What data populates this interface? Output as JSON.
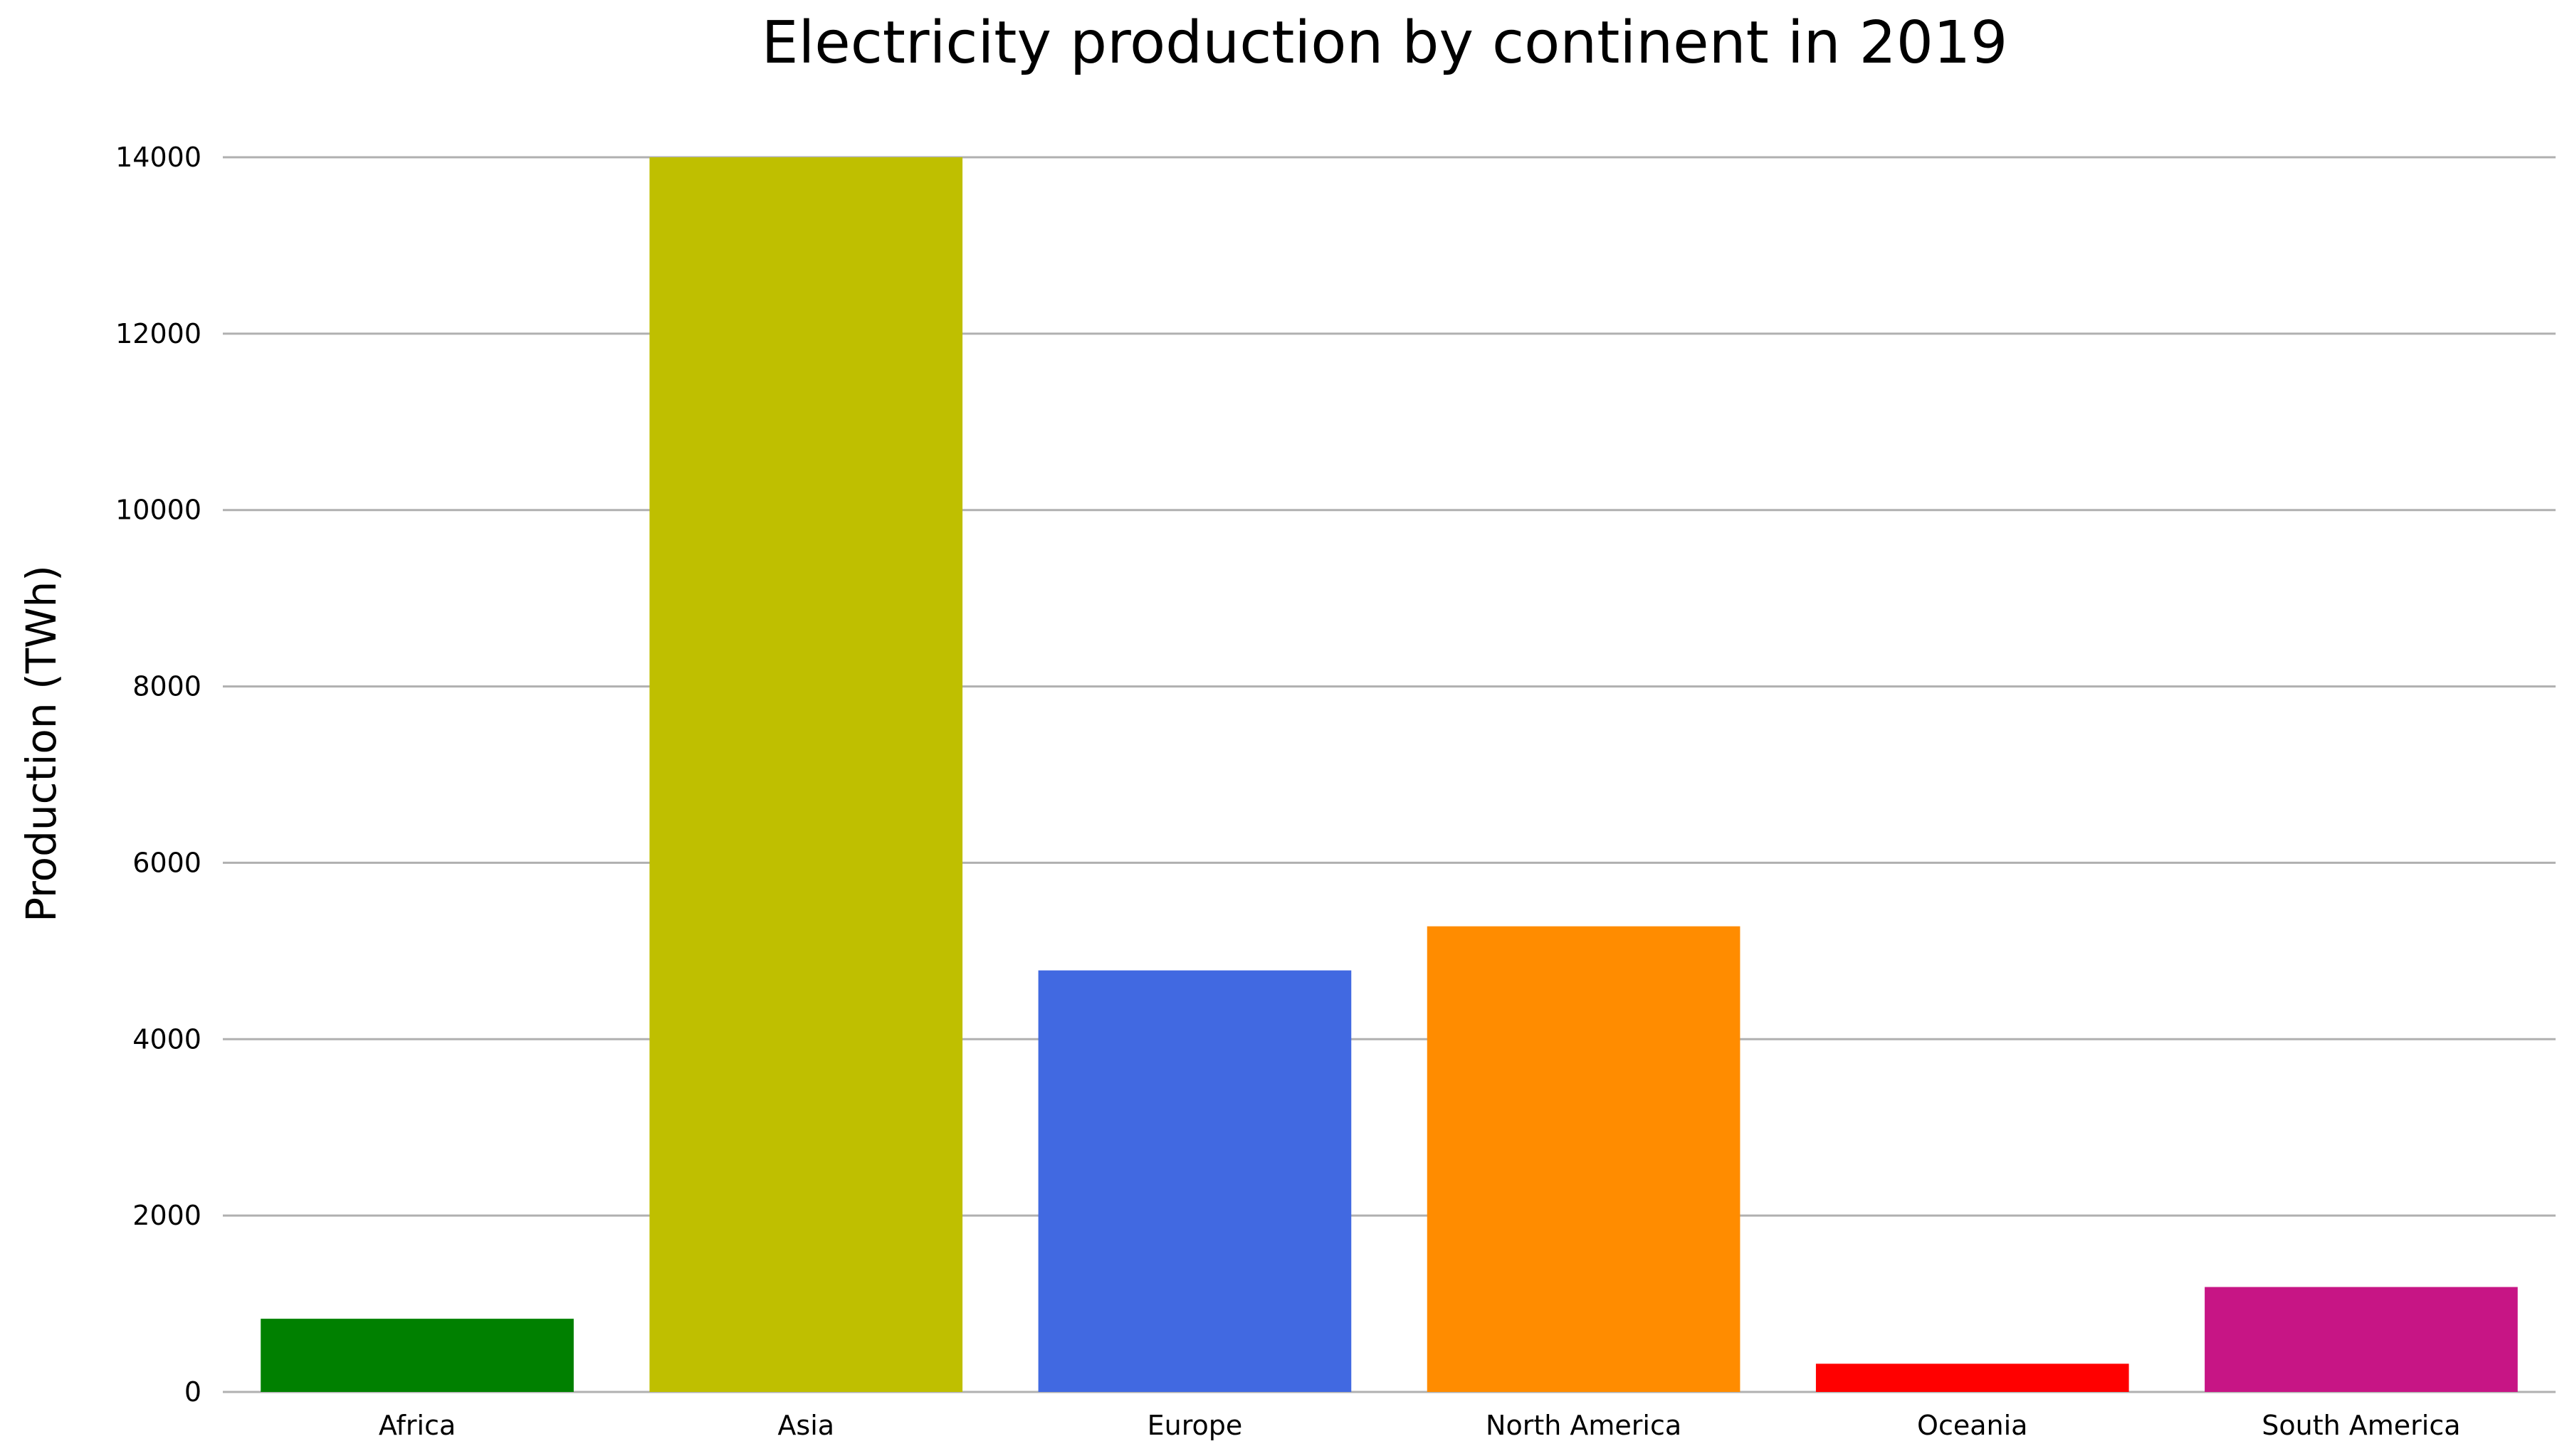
{
  "chart_data": {
    "type": "bar",
    "title": "Electricity production by continent in 2019",
    "xlabel": "",
    "ylabel": "Production (TWh)",
    "ylim": [
      0,
      14000
    ],
    "yticks": [
      "0",
      "2000",
      "4000",
      "6000",
      "8000",
      "10000",
      "12000",
      "14000"
    ],
    "grid": "horizontal",
    "categories": [
      "Africa",
      "Asia",
      "Europe",
      "North America",
      "Oceania",
      "South America"
    ],
    "values": [
      830,
      14000,
      4780,
      5280,
      320,
      1190
    ],
    "colors": [
      "#008000",
      "#BFBF00",
      "#4169E1",
      "#FF8C00",
      "#FF0000",
      "#C71585"
    ]
  }
}
